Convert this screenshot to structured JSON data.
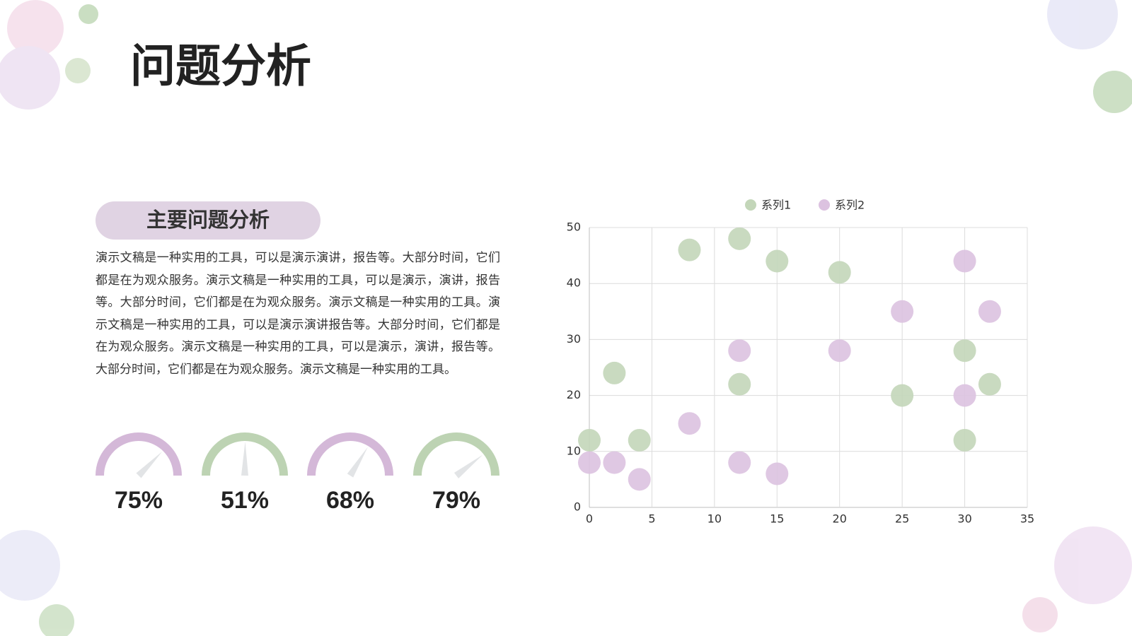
{
  "title": "问题分析",
  "section": {
    "heading": "主要问题分析",
    "text": "演示文稿是一种实用的工具，可以是演示演讲，报告等。大部分时间，它们都是在为观众服务。演示文稿是一种实用的工具，可以是演示，演讲，报告等。大部分时间，它们都是在为观众服务。演示文稿是一种实用的工具。演示文稿是一种实用的工具，可以是演示演讲报告等。大部分时间，它们都是在为观众服务。演示文稿是一种实用的工具，可以是演示，演讲，报告等。大部分时间，它们都是在为观众服务。演示文稿是一种实用的工具。"
  },
  "gauges": [
    {
      "value": 75,
      "label": "75%",
      "color": "#d4b8d8"
    },
    {
      "value": 51,
      "label": "51%",
      "color": "#bdd3b3"
    },
    {
      "value": 68,
      "label": "68%",
      "color": "#d4b8d8"
    },
    {
      "value": 79,
      "label": "79%",
      "color": "#bdd3b3"
    }
  ],
  "chart_data": {
    "type": "scatter",
    "legend": "top",
    "grid": true,
    "xlim": [
      0,
      35
    ],
    "xticks": [
      0,
      5,
      10,
      15,
      20,
      25,
      30,
      35
    ],
    "ylim": [
      0,
      50
    ],
    "yticks": [
      0,
      10,
      20,
      30,
      40,
      50
    ],
    "series": [
      {
        "name": "系列1",
        "color": "#c3d6b9",
        "x": [
          0,
          2,
          4,
          8,
          12,
          12,
          15,
          20,
          25,
          30,
          30,
          32
        ],
        "y": [
          12,
          24,
          12,
          46,
          48,
          22,
          44,
          42,
          20,
          28,
          12,
          22
        ]
      },
      {
        "name": "系列2",
        "color": "#dcc2e0",
        "x": [
          0,
          2,
          4,
          8,
          12,
          12,
          15,
          20,
          25,
          30,
          32,
          30
        ],
        "y": [
          8,
          8,
          5,
          15,
          28,
          8,
          6,
          28,
          35,
          44,
          35,
          20
        ]
      }
    ]
  }
}
